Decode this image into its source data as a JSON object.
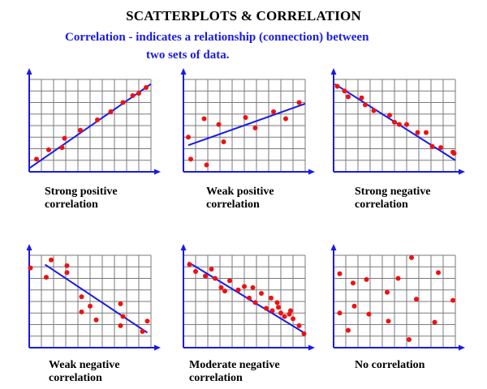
{
  "header": {
    "title": "SCATTERPLOTS & CORRELATION",
    "subtitle_line1": "Correlation - indicates a relationship (connection) between",
    "subtitle_line2": "two sets of data."
  },
  "colors": {
    "subtitle": "#1a1ae6",
    "axis": "#1a1ae6",
    "grid": "#7a7a7a",
    "line": "#1a1ae6",
    "point": "#ee1111"
  },
  "chart_data": [
    {
      "type": "scatter",
      "caption_line1": "Strong positive",
      "caption_line2": "correlation",
      "xlim": [
        0,
        10
      ],
      "ylim": [
        0,
        8
      ],
      "grid": true,
      "axes_arrows": true,
      "trendline": [
        [
          0,
          0.3
        ],
        [
          10,
          7.6
        ]
      ],
      "points": [
        [
          0.6,
          1.1
        ],
        [
          1.6,
          1.9
        ],
        [
          2.7,
          2.1
        ],
        [
          2.9,
          2.9
        ],
        [
          4.2,
          3.6
        ],
        [
          5.6,
          4.5
        ],
        [
          6.7,
          5.2
        ],
        [
          7.7,
          6.0
        ],
        [
          8.5,
          6.6
        ],
        [
          9.0,
          6.8
        ],
        [
          9.6,
          7.3
        ]
      ]
    },
    {
      "type": "scatter",
      "caption_line1": "Weak positive",
      "caption_line2": "correlation",
      "xlim": [
        0,
        10
      ],
      "ylim": [
        0,
        8
      ],
      "grid": true,
      "axes_arrows": true,
      "trendline": [
        [
          0.4,
          2.3
        ],
        [
          10,
          5.9
        ]
      ],
      "points": [
        [
          0.4,
          3.0
        ],
        [
          0.6,
          1.1
        ],
        [
          1.7,
          4.6
        ],
        [
          1.9,
          0.6
        ],
        [
          2.9,
          4.1
        ],
        [
          3.3,
          2.6
        ],
        [
          5.1,
          4.7
        ],
        [
          5.9,
          3.8
        ],
        [
          7.4,
          5.2
        ],
        [
          8.4,
          4.6
        ],
        [
          9.5,
          6.0
        ]
      ]
    },
    {
      "type": "scatter",
      "caption_line1": "Strong negative",
      "caption_line2": "correlation",
      "xlim": [
        0,
        10
      ],
      "ylim": [
        0,
        8
      ],
      "grid": true,
      "axes_arrows": true,
      "trendline": [
        [
          0.1,
          7.6
        ],
        [
          10,
          1.0
        ]
      ],
      "points": [
        [
          0.3,
          7.4
        ],
        [
          0.9,
          7.0
        ],
        [
          1.2,
          6.5
        ],
        [
          2.3,
          6.4
        ],
        [
          2.6,
          5.8
        ],
        [
          3.3,
          5.3
        ],
        [
          4.6,
          4.9
        ],
        [
          5.0,
          4.3
        ],
        [
          5.4,
          4.1
        ],
        [
          6.0,
          4.1
        ],
        [
          6.9,
          3.4
        ],
        [
          7.6,
          3.4
        ],
        [
          8.1,
          2.2
        ],
        [
          8.8,
          2.1
        ],
        [
          9.8,
          1.7
        ],
        [
          9.9,
          1.6
        ]
      ]
    },
    {
      "type": "scatter",
      "caption_line1": "Weak negative",
      "caption_line2": "correlation",
      "xlim": [
        0,
        10
      ],
      "ylim": [
        0,
        8
      ],
      "grid": true,
      "axes_arrows": true,
      "trendline": [
        [
          1.3,
          7.2
        ],
        [
          9.7,
          1.3
        ]
      ],
      "points": [
        [
          0.1,
          6.9
        ],
        [
          1.4,
          6.1
        ],
        [
          1.8,
          7.6
        ],
        [
          3.1,
          7.1
        ],
        [
          3.1,
          6.5
        ],
        [
          4.3,
          4.4
        ],
        [
          4.3,
          3.1
        ],
        [
          5.0,
          3.6
        ],
        [
          5.5,
          2.4
        ],
        [
          7.5,
          3.8
        ],
        [
          7.7,
          2.7
        ],
        [
          7.5,
          1.9
        ],
        [
          9.3,
          1.4
        ],
        [
          9.7,
          2.3
        ]
      ]
    },
    {
      "type": "scatter",
      "caption_line1": "Moderate negative",
      "caption_line2": "correlation",
      "xlim": [
        0,
        10
      ],
      "ylim": [
        0,
        8
      ],
      "grid": true,
      "axes_arrows": true,
      "trendline": [
        [
          0.4,
          7.4
        ],
        [
          9.9,
          1.3
        ]
      ],
      "points": [
        [
          0.5,
          7.2
        ],
        [
          1.0,
          6.6
        ],
        [
          1.8,
          6.2
        ],
        [
          2.3,
          6.8
        ],
        [
          2.6,
          6.0
        ],
        [
          3.1,
          5.2
        ],
        [
          3.4,
          4.9
        ],
        [
          3.8,
          5.8
        ],
        [
          4.5,
          5.0
        ],
        [
          5.0,
          5.3
        ],
        [
          5.4,
          4.3
        ],
        [
          5.7,
          5.2
        ],
        [
          5.9,
          3.9
        ],
        [
          6.4,
          4.7
        ],
        [
          6.8,
          3.4
        ],
        [
          7.2,
          4.3
        ],
        [
          7.3,
          3.2
        ],
        [
          7.7,
          3.9
        ],
        [
          7.8,
          3.5
        ],
        [
          8.0,
          3.0
        ],
        [
          8.3,
          2.7
        ],
        [
          8.7,
          2.9
        ],
        [
          8.8,
          3.2
        ],
        [
          9.0,
          2.5
        ],
        [
          9.5,
          1.9
        ],
        [
          9.9,
          1.2
        ]
      ]
    },
    {
      "type": "scatter",
      "caption_line1": "No correlation",
      "caption_line2": "",
      "xlim": [
        0,
        10
      ],
      "ylim": [
        0,
        8
      ],
      "grid": true,
      "axes_arrows": true,
      "trendline": null,
      "points": [
        [
          0.5,
          6.4
        ],
        [
          0.5,
          3.0
        ],
        [
          1.2,
          1.5
        ],
        [
          1.6,
          5.6
        ],
        [
          1.7,
          3.6
        ],
        [
          2.7,
          5.9
        ],
        [
          2.9,
          2.9
        ],
        [
          4.4,
          4.8
        ],
        [
          4.5,
          2.3
        ],
        [
          5.3,
          6.0
        ],
        [
          6.2,
          0.7
        ],
        [
          6.4,
          7.8
        ],
        [
          6.8,
          4.2
        ],
        [
          8.3,
          2.2
        ],
        [
          8.6,
          6.5
        ],
        [
          9.8,
          4.1
        ]
      ]
    }
  ]
}
